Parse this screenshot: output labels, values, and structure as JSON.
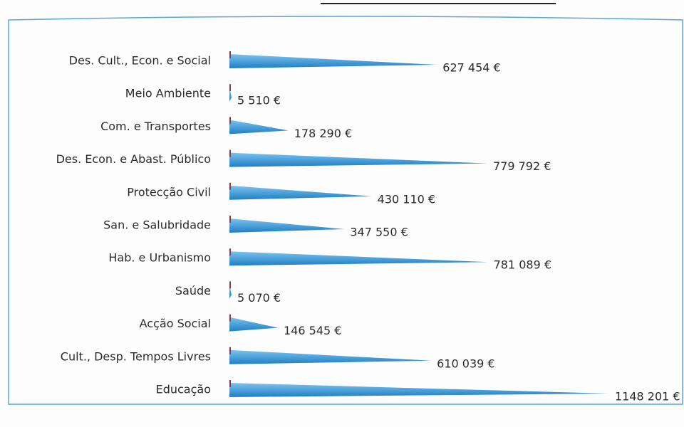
{
  "chart_data": {
    "type": "bar",
    "orientation": "horizontal",
    "color": "#2f8fd3",
    "categories": [
      "Des. Cult., Econ. e Social",
      "Meio Ambiente",
      "Com. e Transportes",
      "Des. Econ. e Abast. Público",
      "Protecção Civil",
      "San. e Salubridade",
      "Hab. e Urbanismo",
      "Saúde",
      "Acção Social",
      "Cult., Desp. Tempos Livres",
      "Educação"
    ],
    "values": [
      627454,
      5510,
      178290,
      779792,
      430110,
      347550,
      781089,
      5070,
      146545,
      610039,
      1148201
    ],
    "value_labels": [
      "627 454 €",
      "5 510 €",
      "178 290 €",
      "779 792 €",
      "430 110 €",
      "347 550 €",
      "781 089 €",
      "5 070 €",
      "146 545 €",
      "610 039 €",
      "1148 201 €"
    ]
  }
}
